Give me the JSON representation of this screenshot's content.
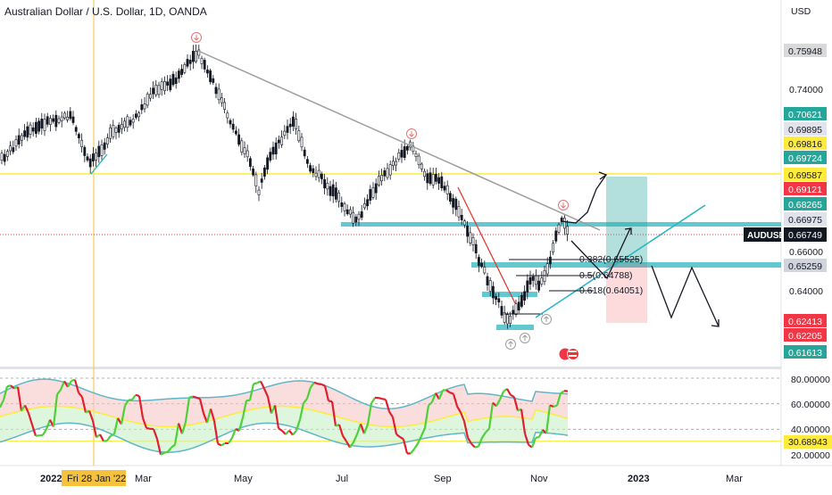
{
  "header": {
    "symbol_title": "Australian Dollar / U.S. Dollar, 1D, OANDA",
    "currency": "USD"
  },
  "price_axis": {
    "ticks": [
      "0.74000",
      "0.66000",
      "0.64000"
    ],
    "badges": [
      {
        "text": "0.75948",
        "bg": "#d9d9d9",
        "fg": "#131722"
      },
      {
        "text": "0.70621",
        "bg": "#26a69a",
        "fg": "#ffffff"
      },
      {
        "text": "0.69895",
        "bg": "#e0e3eb",
        "fg": "#131722"
      },
      {
        "text": "0.69816",
        "bg": "#ffeb3b",
        "fg": "#131722"
      },
      {
        "text": "0.69724",
        "bg": "#26a69a",
        "fg": "#ffffff"
      },
      {
        "text": "0.69587",
        "bg": "#ffeb3b",
        "fg": "#131722"
      },
      {
        "text": "0.69121",
        "bg": "#f23645",
        "fg": "#ffffff"
      },
      {
        "text": "0.68265",
        "bg": "#26a69a",
        "fg": "#ffffff"
      },
      {
        "text": "0.66975",
        "bg": "#e0e3eb",
        "fg": "#131722"
      },
      {
        "text": "0.65259",
        "bg": "#d1d4dc",
        "fg": "#131722"
      },
      {
        "text": "0.62413",
        "bg": "#f23645",
        "fg": "#ffffff"
      },
      {
        "text": "0.62205",
        "bg": "#f23645",
        "fg": "#ffffff"
      },
      {
        "text": "0.61613",
        "bg": "#26a69a",
        "fg": "#ffffff"
      }
    ],
    "symbol_tag": "AUDUSD",
    "last_price": "0.66749"
  },
  "fib_labels": [
    "0.382(0.65525)",
    "0.5(0.64788)",
    "0.618(0.64051)"
  ],
  "rsi_axis": {
    "ticks": [
      "80.00000",
      "60.00000",
      "40.00000",
      "20.00000"
    ],
    "value": "30.68943"
  },
  "time_axis": {
    "labels": [
      "2022",
      "Mar",
      "May",
      "Jul",
      "Sep",
      "Nov",
      "2023",
      "Mar"
    ],
    "crosshair_date": "Fri 28 Jan '22"
  },
  "colors": {
    "up": "#131722",
    "teal": "#22b5c4",
    "rsi_up": "#4cd137",
    "rsi_down": "#e0202f",
    "crosshair": "#f7c23b"
  },
  "icons": [
    "flag-icon",
    "arrow-down-marker-icon",
    "arrow-up-marker-icon",
    "trendline-icon"
  ]
}
